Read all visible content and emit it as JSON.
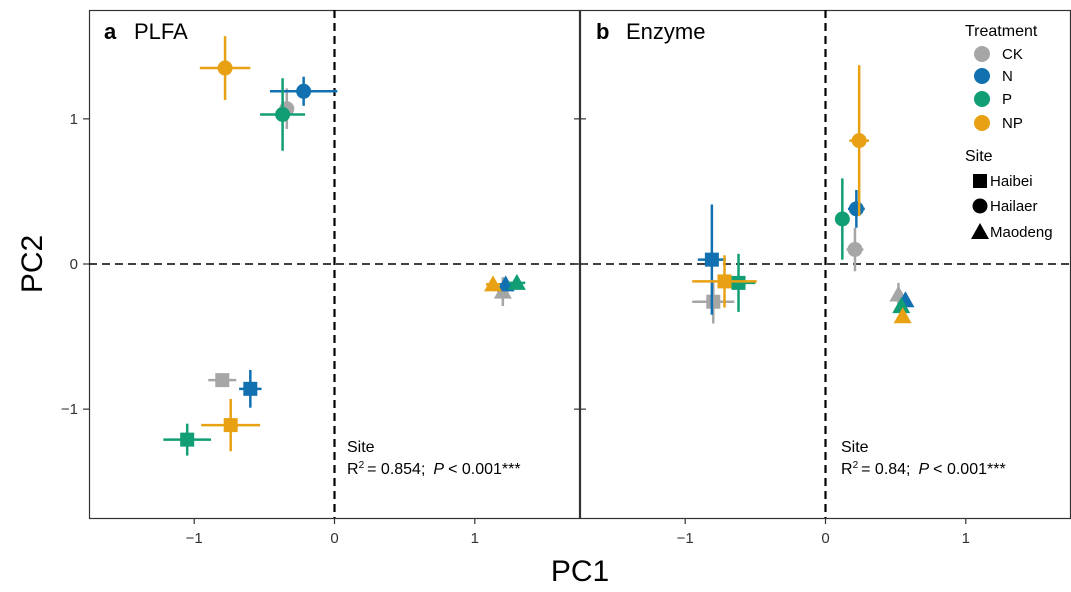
{
  "chart_data": {
    "type": "scatter",
    "xlabel": "PC1",
    "ylabel": "PC2",
    "xlim": [
      -1.75,
      1.75
    ],
    "ylim": [
      -1.75,
      1.75
    ],
    "xticks": [
      -1,
      0,
      1
    ],
    "yticks": [
      -1,
      0,
      1
    ],
    "xtick_labels": [
      "−1",
      "0",
      "1"
    ],
    "ytick_labels": [
      "−1",
      "0",
      "1"
    ],
    "reference_lines": {
      "x": 0,
      "y": 0,
      "style": "dashed"
    },
    "grid": false,
    "panels": [
      {
        "letter": "a",
        "name": "PLFA",
        "annotation": {
          "title": "Site",
          "r2_prefix": "R",
          "r2_value": "= 0.854;",
          "p_label": "P",
          "p_value": "< 0.001***"
        },
        "points": [
          {
            "site": "Haibei",
            "treatment": "CK",
            "x": -0.8,
            "y": -0.8,
            "xerr": 0.1,
            "yerr": 0.02
          },
          {
            "site": "Haibei",
            "treatment": "N",
            "x": -0.6,
            "y": -0.86,
            "xerr": 0.08,
            "yerr": 0.13
          },
          {
            "site": "Haibei",
            "treatment": "P",
            "x": -1.05,
            "y": -1.21,
            "xerr": 0.17,
            "yerr": 0.11
          },
          {
            "site": "Haibei",
            "treatment": "NP",
            "x": -0.74,
            "y": -1.11,
            "xerr": 0.21,
            "yerr": 0.18
          },
          {
            "site": "Hailaer",
            "treatment": "CK",
            "x": -0.34,
            "y": 1.07,
            "xerr": 0.05,
            "yerr": 0.14
          },
          {
            "site": "Hailaer",
            "treatment": "N",
            "x": -0.22,
            "y": 1.19,
            "xerr": 0.24,
            "yerr": 0.1
          },
          {
            "site": "Hailaer",
            "treatment": "P",
            "x": -0.37,
            "y": 1.03,
            "xerr": 0.16,
            "yerr": 0.25
          },
          {
            "site": "Hailaer",
            "treatment": "NP",
            "x": -0.78,
            "y": 1.35,
            "xerr": 0.18,
            "yerr": 0.22
          },
          {
            "site": "Maodeng",
            "treatment": "CK",
            "x": 1.2,
            "y": -0.19,
            "xerr": 0.04,
            "yerr": 0.1
          },
          {
            "site": "Maodeng",
            "treatment": "N",
            "x": 1.22,
            "y": -0.14,
            "xerr": 0.05,
            "yerr": 0.04
          },
          {
            "site": "Maodeng",
            "treatment": "P",
            "x": 1.3,
            "y": -0.13,
            "xerr": 0.06,
            "yerr": 0.04
          },
          {
            "site": "Maodeng",
            "treatment": "NP",
            "x": 1.13,
            "y": -0.14,
            "xerr": 0.05,
            "yerr": 0.04
          }
        ]
      },
      {
        "letter": "b",
        "name": "Enzyme",
        "annotation": {
          "title": "Site",
          "r2_prefix": "R",
          "r2_value": "= 0.84;",
          "p_label": "P",
          "p_value": "< 0.001***"
        },
        "points": [
          {
            "site": "Haibei",
            "treatment": "CK",
            "x": -0.8,
            "y": -0.26,
            "xerr": 0.15,
            "yerr": 0.15
          },
          {
            "site": "Haibei",
            "treatment": "N",
            "x": -0.81,
            "y": 0.03,
            "xerr": 0.1,
            "yerr": 0.38
          },
          {
            "site": "Haibei",
            "treatment": "P",
            "x": -0.62,
            "y": -0.13,
            "xerr": 0.12,
            "yerr": 0.2
          },
          {
            "site": "Haibei",
            "treatment": "NP",
            "x": -0.72,
            "y": -0.12,
            "xerr": 0.23,
            "yerr": 0.18
          },
          {
            "site": "Hailaer",
            "treatment": "CK",
            "x": 0.21,
            "y": 0.1,
            "xerr": 0.06,
            "yerr": 0.15
          },
          {
            "site": "Hailaer",
            "treatment": "N",
            "x": 0.22,
            "y": 0.38,
            "xerr": 0.06,
            "yerr": 0.13
          },
          {
            "site": "Hailaer",
            "treatment": "P",
            "x": 0.12,
            "y": 0.31,
            "xerr": 0.04,
            "yerr": 0.28
          },
          {
            "site": "Hailaer",
            "treatment": "NP",
            "x": 0.24,
            "y": 0.85,
            "xerr": 0.07,
            "yerr": 0.52
          },
          {
            "site": "Maodeng",
            "treatment": "CK",
            "x": 0.52,
            "y": -0.21,
            "xerr": 0.03,
            "yerr": 0.08
          },
          {
            "site": "Maodeng",
            "treatment": "N",
            "x": 0.57,
            "y": -0.25,
            "xerr": 0.03,
            "yerr": 0.05
          },
          {
            "site": "Maodeng",
            "treatment": "P",
            "x": 0.54,
            "y": -0.29,
            "xerr": 0.03,
            "yerr": 0.04
          },
          {
            "site": "Maodeng",
            "treatment": "NP",
            "x": 0.55,
            "y": -0.36,
            "xerr": 0.03,
            "yerr": 0.04
          }
        ]
      }
    ],
    "legend": {
      "placement": "top-right",
      "treatment_title": "Treatment",
      "treatments": [
        {
          "name": "CK",
          "color": "#a6a6a6"
        },
        {
          "name": "N",
          "color": "#1170b0"
        },
        {
          "name": "P",
          "color": "#119e74"
        },
        {
          "name": "NP",
          "color": "#e7a113"
        }
      ],
      "site_title": "Site",
      "sites": [
        {
          "name": "Haibei",
          "shape": "square"
        },
        {
          "name": "Hailaer",
          "shape": "circle"
        },
        {
          "name": "Maodeng",
          "shape": "triangle"
        }
      ]
    }
  }
}
